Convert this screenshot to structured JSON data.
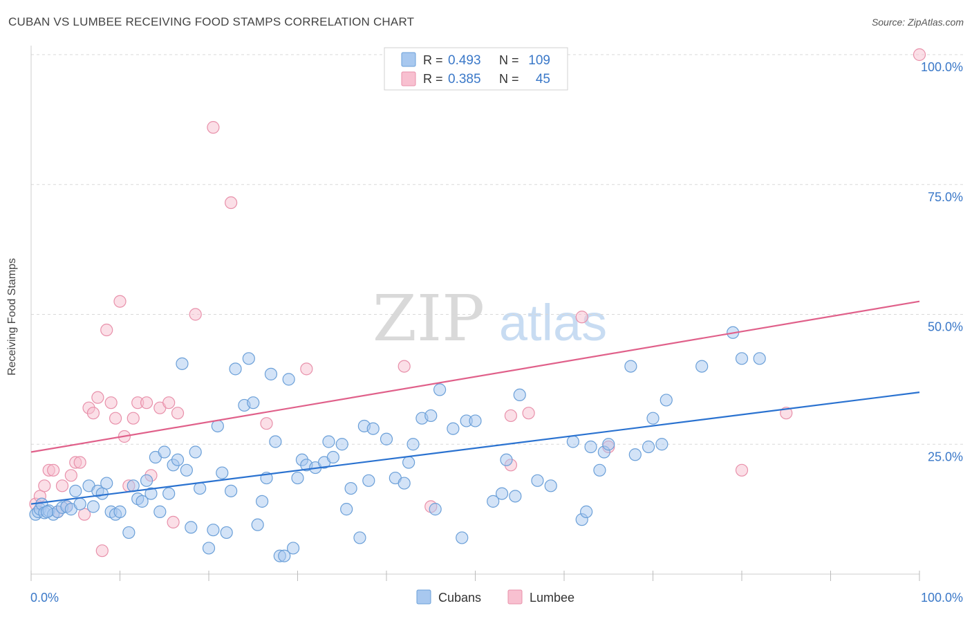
{
  "header": {
    "title": "CUBAN VS LUMBEE RECEIVING FOOD STAMPS CORRELATION CHART",
    "source": "Source: ZipAtlas.com"
  },
  "watermark": {
    "zip": "ZIP",
    "atlas": "atlas"
  },
  "colors": {
    "cubans_fill": "#a8c8ef",
    "cubans_stroke": "#6a9fd8",
    "cubans_line": "#2a72d0",
    "lumbee_fill": "#f8c0d0",
    "lumbee_stroke": "#e890aa",
    "lumbee_line": "#e0608a",
    "tick_text": "#3a78c8",
    "grid": "#d8d8d8"
  },
  "legend_top": {
    "rows": [
      {
        "r_label": "R =",
        "r_value": "0.493",
        "n_label": "N =",
        "n_value": "109"
      },
      {
        "r_label": "R =",
        "r_value": "0.385",
        "n_label": "N =",
        "n_value": "45"
      }
    ]
  },
  "legend_bottom": {
    "items": [
      "Cubans",
      "Lumbee"
    ]
  },
  "chart_data": {
    "type": "scatter",
    "title": "CUBAN VS LUMBEE RECEIVING FOOD STAMPS CORRELATION CHART",
    "xlabel": "",
    "ylabel": "Receiving Food Stamps",
    "xlim": [
      0,
      100
    ],
    "ylim": [
      0,
      100
    ],
    "x_tick_labels": [
      "0.0%",
      "100.0%"
    ],
    "y_tick_labels": [
      "25.0%",
      "50.0%",
      "75.0%",
      "100.0%"
    ],
    "y_ticks": [
      25,
      50,
      75,
      100
    ],
    "grid": true,
    "legend_placement": "bottom-center",
    "series": [
      {
        "name": "Cubans",
        "r": 0.493,
        "n": 109,
        "trend": {
          "y_at_0": 13.5,
          "y_at_100": 35.0
        },
        "points": [
          [
            0.5,
            11.5
          ],
          [
            0.8,
            12.0
          ],
          [
            1.0,
            12.5
          ],
          [
            1.2,
            13.5
          ],
          [
            1.5,
            11.8
          ],
          [
            2.0,
            12.2
          ],
          [
            2.5,
            11.5
          ],
          [
            3.0,
            12.0
          ],
          [
            3.5,
            12.8
          ],
          [
            4.0,
            13.0
          ],
          [
            4.5,
            12.5
          ],
          [
            5.0,
            16.0
          ],
          [
            5.5,
            13.5
          ],
          [
            6.5,
            17.0
          ],
          [
            7.0,
            13.0
          ],
          [
            7.5,
            16.0
          ],
          [
            8.0,
            15.5
          ],
          [
            8.5,
            17.5
          ],
          [
            9.0,
            12.0
          ],
          [
            9.5,
            11.5
          ],
          [
            10.0,
            12.0
          ],
          [
            11.0,
            8.0
          ],
          [
            11.5,
            17.0
          ],
          [
            12.0,
            14.5
          ],
          [
            12.5,
            14.0
          ],
          [
            13.0,
            18.0
          ],
          [
            13.5,
            15.5
          ],
          [
            14.0,
            22.5
          ],
          [
            14.5,
            12.0
          ],
          [
            15.0,
            23.5
          ],
          [
            15.5,
            15.5
          ],
          [
            16.0,
            21.0
          ],
          [
            16.5,
            22.0
          ],
          [
            17.0,
            40.5
          ],
          [
            17.5,
            20.0
          ],
          [
            18.0,
            9.0
          ],
          [
            18.5,
            23.5
          ],
          [
            19.0,
            16.5
          ],
          [
            20.0,
            5.0
          ],
          [
            20.5,
            8.5
          ],
          [
            21.0,
            28.5
          ],
          [
            21.5,
            19.5
          ],
          [
            22.0,
            8.0
          ],
          [
            22.5,
            16.0
          ],
          [
            23.0,
            39.5
          ],
          [
            24.0,
            32.5
          ],
          [
            24.5,
            41.5
          ],
          [
            25.0,
            33.0
          ],
          [
            25.5,
            9.5
          ],
          [
            26.0,
            14.0
          ],
          [
            26.5,
            18.5
          ],
          [
            27.0,
            38.5
          ],
          [
            27.5,
            25.5
          ],
          [
            28.0,
            3.5
          ],
          [
            28.5,
            3.5
          ],
          [
            29.0,
            37.5
          ],
          [
            29.5,
            5.0
          ],
          [
            30.0,
            18.5
          ],
          [
            30.5,
            22.0
          ],
          [
            31.0,
            21.0
          ],
          [
            32.0,
            20.5
          ],
          [
            33.0,
            21.5
          ],
          [
            33.5,
            25.5
          ],
          [
            34.0,
            22.5
          ],
          [
            35.0,
            25.0
          ],
          [
            35.5,
            12.5
          ],
          [
            36.0,
            16.5
          ],
          [
            37.0,
            7.0
          ],
          [
            37.5,
            28.5
          ],
          [
            38.0,
            18.0
          ],
          [
            38.5,
            28.0
          ],
          [
            40.0,
            26.0
          ],
          [
            41.0,
            18.5
          ],
          [
            42.0,
            17.5
          ],
          [
            42.5,
            21.5
          ],
          [
            43.0,
            25.0
          ],
          [
            44.0,
            30.0
          ],
          [
            45.0,
            30.5
          ],
          [
            45.5,
            12.5
          ],
          [
            46.0,
            35.5
          ],
          [
            47.5,
            28.0
          ],
          [
            48.5,
            7.0
          ],
          [
            49.0,
            29.5
          ],
          [
            50.0,
            29.5
          ],
          [
            52.0,
            14.0
          ],
          [
            53.0,
            15.5
          ],
          [
            53.5,
            22.0
          ],
          [
            54.5,
            15.0
          ],
          [
            55.0,
            34.5
          ],
          [
            57.0,
            18.0
          ],
          [
            58.5,
            17.0
          ],
          [
            61.0,
            25.5
          ],
          [
            62.0,
            10.5
          ],
          [
            62.5,
            12.0
          ],
          [
            63.0,
            24.5
          ],
          [
            64.0,
            20.0
          ],
          [
            64.5,
            23.5
          ],
          [
            65.0,
            25.0
          ],
          [
            67.5,
            40.0
          ],
          [
            68.0,
            23.0
          ],
          [
            69.5,
            24.5
          ],
          [
            70.0,
            30.0
          ],
          [
            71.0,
            25.0
          ],
          [
            71.5,
            33.5
          ],
          [
            75.5,
            40.0
          ],
          [
            79.0,
            46.5
          ],
          [
            80.0,
            41.5
          ],
          [
            82.0,
            41.5
          ],
          [
            1.8,
            12.0
          ]
        ]
      },
      {
        "name": "Lumbee",
        "r": 0.385,
        "n": 45,
        "trend": {
          "y_at_0": 23.5,
          "y_at_100": 52.5
        },
        "points": [
          [
            0.5,
            13.5
          ],
          [
            1.0,
            15.0
          ],
          [
            1.5,
            17.0
          ],
          [
            2.0,
            20.0
          ],
          [
            2.5,
            20.0
          ],
          [
            3.0,
            12.0
          ],
          [
            3.5,
            17.0
          ],
          [
            4.0,
            13.0
          ],
          [
            4.5,
            19.0
          ],
          [
            5.0,
            21.5
          ],
          [
            5.5,
            21.5
          ],
          [
            6.0,
            11.5
          ],
          [
            6.5,
            32.0
          ],
          [
            7.0,
            31.0
          ],
          [
            7.5,
            34.0
          ],
          [
            8.0,
            4.5
          ],
          [
            8.5,
            47.0
          ],
          [
            9.0,
            33.0
          ],
          [
            9.5,
            30.0
          ],
          [
            10.0,
            52.5
          ],
          [
            10.5,
            26.5
          ],
          [
            11.0,
            17.0
          ],
          [
            11.5,
            30.0
          ],
          [
            12.0,
            33.0
          ],
          [
            13.0,
            33.0
          ],
          [
            13.5,
            19.0
          ],
          [
            14.5,
            32.0
          ],
          [
            15.5,
            33.0
          ],
          [
            16.0,
            10.0
          ],
          [
            16.5,
            31.0
          ],
          [
            18.5,
            50.0
          ],
          [
            20.5,
            86.0
          ],
          [
            22.5,
            71.5
          ],
          [
            26.5,
            29.0
          ],
          [
            31.0,
            39.5
          ],
          [
            42.0,
            40.0
          ],
          [
            45.0,
            13.0
          ],
          [
            54.0,
            30.5
          ],
          [
            54.0,
            21.0
          ],
          [
            56.0,
            31.0
          ],
          [
            62.0,
            49.5
          ],
          [
            65.0,
            24.5
          ],
          [
            80.0,
            20.0
          ],
          [
            85.0,
            31.0
          ],
          [
            100.0,
            100.0
          ]
        ]
      }
    ]
  }
}
